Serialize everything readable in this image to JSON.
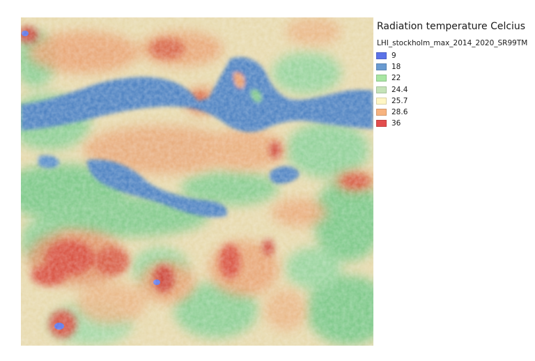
{
  "legend": {
    "title": "Radiation temperature Celcius",
    "layer": "LHI_stockholm_max_2014_2020_SR99TM",
    "items": [
      {
        "label": "9",
        "color": "#5b73e8"
      },
      {
        "label": "18",
        "color": "#6a9bd1"
      },
      {
        "label": "22",
        "color": "#a8e6a3"
      },
      {
        "label": "24.4",
        "color": "#c5e3b8"
      },
      {
        "label": "25.7",
        "color": "#fff6c4"
      },
      {
        "label": "28.6",
        "color": "#f7b37f"
      },
      {
        "label": "36",
        "color": "#e34d4d"
      }
    ]
  },
  "map": {
    "palette": {
      "water": "#4f83c2",
      "green": "#7fc98a",
      "light_green": "#b9ddb0",
      "pale": "#f1e7c3",
      "orange": "#e9a070",
      "red": "#d84c3c",
      "blue_spot": "#5b73e8"
    }
  }
}
